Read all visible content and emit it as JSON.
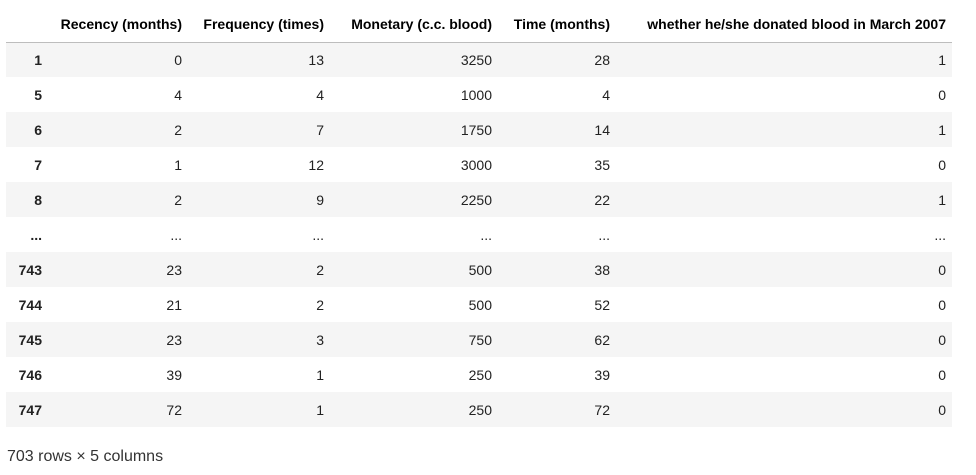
{
  "table": {
    "columns": [
      "",
      "Recency (months)",
      "Frequency (times)",
      "Monetary (c.c. blood)",
      "Time (months)",
      "whether he/she donated blood in March 2007"
    ],
    "rows": [
      [
        "1",
        "0",
        "13",
        "3250",
        "28",
        "1"
      ],
      [
        "5",
        "4",
        "4",
        "1000",
        "4",
        "0"
      ],
      [
        "6",
        "2",
        "7",
        "1750",
        "14",
        "1"
      ],
      [
        "7",
        "1",
        "12",
        "3000",
        "35",
        "0"
      ],
      [
        "8",
        "2",
        "9",
        "2250",
        "22",
        "1"
      ],
      [
        "...",
        "...",
        "...",
        "...",
        "...",
        "..."
      ],
      [
        "743",
        "23",
        "2",
        "500",
        "38",
        "0"
      ],
      [
        "744",
        "21",
        "2",
        "500",
        "52",
        "0"
      ],
      [
        "745",
        "23",
        "3",
        "750",
        "62",
        "0"
      ],
      [
        "746",
        "39",
        "1",
        "250",
        "39",
        "0"
      ],
      [
        "747",
        "72",
        "1",
        "250",
        "72",
        "0"
      ]
    ]
  },
  "footer": {
    "shape_text": "703 rows × 5 columns"
  }
}
